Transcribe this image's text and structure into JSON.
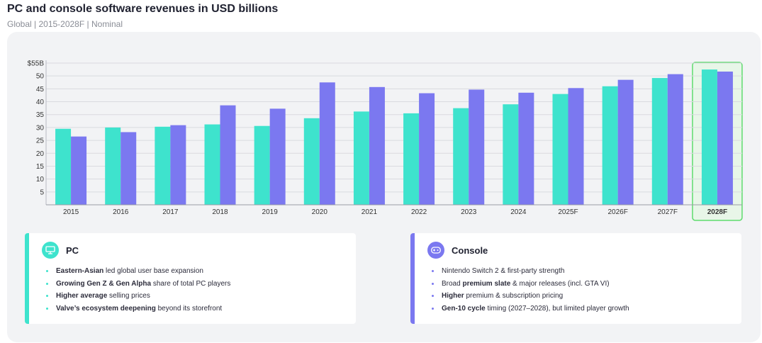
{
  "header": {
    "title": "PC and console software revenues in USD billions",
    "subtitle": "Global | 2015-2028F | Nominal"
  },
  "chart_data": {
    "type": "bar",
    "title": "PC and console software revenues in USD billions",
    "categories": [
      "2015",
      "2016",
      "2017",
      "2018",
      "2019",
      "2020",
      "2021",
      "2022",
      "2023",
      "2024",
      "2025F",
      "2026F",
      "2027F",
      "2028F"
    ],
    "series": [
      {
        "color": "#3ee3cd",
        "values": [
          29.5,
          30.0,
          30.3,
          31.2,
          30.6,
          33.6,
          36.2,
          35.5,
          37.5,
          39.0,
          43.0,
          46.0,
          49.2,
          52.5
        ]
      },
      {
        "color": "#7b78f0",
        "values": [
          26.5,
          28.2,
          30.9,
          38.6,
          37.3,
          47.5,
          45.7,
          43.3,
          44.7,
          43.5,
          45.3,
          48.5,
          50.7,
          51.7
        ]
      }
    ],
    "y_ticks": [
      "5",
      "10",
      "15",
      "20",
      "25",
      "30",
      "35",
      "40",
      "45",
      "50",
      "$55B"
    ],
    "ylim": [
      0,
      55
    ],
    "grid": true,
    "highlight_category": "2028F",
    "highlight_color": "#5fdc6e"
  },
  "cards": {
    "pc": {
      "title": "PC",
      "icon": "monitor-icon",
      "items": [
        {
          "bold": "Eastern-Asian",
          "rest": " led global user base expansion"
        },
        {
          "bold": "Growing Gen Z & Gen Alpha",
          "rest": " share of  total PC players"
        },
        {
          "bold": "Higher average",
          "rest": " selling prices"
        },
        {
          "bold": "Valve’s ecosystem deepening",
          "rest": " beyond its storefront"
        }
      ]
    },
    "console": {
      "title": "Console",
      "icon": "gamepad-icon",
      "items": [
        {
          "pre": "Nintendo Switch 2 &  first-party strength",
          "bold": "",
          "rest": ""
        },
        {
          "pre": "Broad ",
          "bold": "premium slate",
          "rest": " & major releases (incl. GTA VI)"
        },
        {
          "pre": "",
          "bold": "Higher",
          "rest": " premium &  subscription pricing"
        },
        {
          "pre": "",
          "bold": "Gen-10 cycle",
          "rest": " timing (2027–2028), but limited player growth"
        }
      ]
    }
  }
}
